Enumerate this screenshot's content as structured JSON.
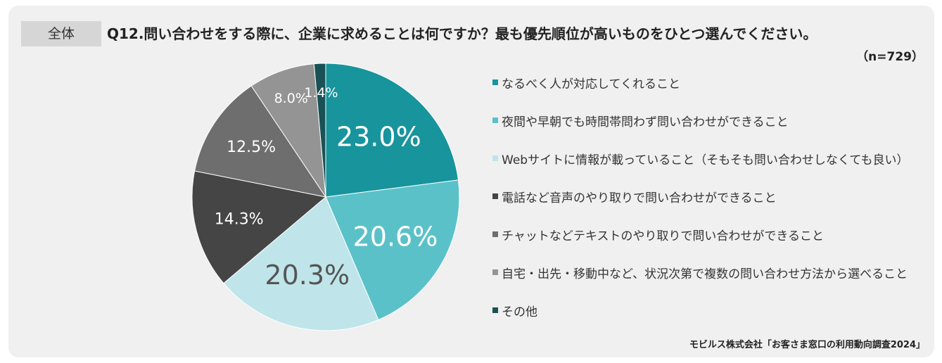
{
  "header": {
    "tag": "全体",
    "question": "Q12.問い合わせをする際に、企業に求めることは何ですか？最も優先順位が高いものをひとつ選んでください。",
    "n": "（n=729）"
  },
  "chart_data": {
    "type": "pie",
    "title": "",
    "slices": [
      {
        "label": "なるべく人が対応してくれること",
        "value": 23.0,
        "display": "23.0%",
        "color": "#17949c",
        "label_color": "#ffffff",
        "label_size": "large"
      },
      {
        "label": "夜間や早朝でも時間帯問わず問い合わせができること",
        "value": 20.6,
        "display": "20.6%",
        "color": "#5bc1c9",
        "label_color": "#ffffff",
        "label_size": "large"
      },
      {
        "label": "Webサイトに情報が載っていること（そもそも問い合わせしなくても良い）",
        "value": 20.3,
        "display": "20.3%",
        "color": "#bfe5ea",
        "label_color": "#555555",
        "label_size": "large"
      },
      {
        "label": "電話など音声のやり取りで問い合わせができること",
        "value": 14.3,
        "display": "14.3%",
        "color": "#454545",
        "label_color": "#ffffff",
        "label_size": "medium"
      },
      {
        "label": "チャットなどテキストのやり取りで問い合わせができること",
        "value": 12.5,
        "display": "12.5%",
        "color": "#6e6e6e",
        "label_color": "#ffffff",
        "label_size": "medium"
      },
      {
        "label": "自宅・出先・移動中など、状況次第で複数の問い合わせ方法から選べること",
        "value": 8.0,
        "display": "8.0%",
        "color": "#949494",
        "label_color": "#ffffff",
        "label_size": "small"
      },
      {
        "label": "その他",
        "value": 1.4,
        "display": "1.4%",
        "color": "#1a5156",
        "label_color": "#ffffff",
        "label_size": "small"
      }
    ],
    "legend_position": "right"
  },
  "source": "モビルス株式会社「お客さま窓口の利用動向調査2024」"
}
